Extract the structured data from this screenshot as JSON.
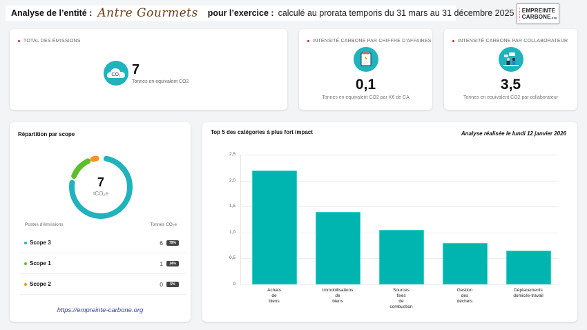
{
  "header": {
    "entity_label": "Analyse de l’entité :",
    "entity_name": "Antre Gourmets",
    "exercise_label": "pour l’exercice :",
    "exercise_value": "calculé au prorata temporis du 31 mars au 31 décembre 2025"
  },
  "logo": {
    "line1": "EMPREINTE",
    "line2": "CARBONE",
    "suffix": ".org"
  },
  "kpis": {
    "total": {
      "title": "TOTAL DES ÉMISSIONS",
      "icon": "co2-cloud-icon",
      "icon_text": "CO₂",
      "value": "7",
      "unit": "Tonnes en equivalent CO2"
    },
    "revenue": {
      "title": "INTENSITÉ CARBONE PAR CHIFFRE D’AFFAIRES",
      "icon": "clipboard-icon",
      "value": "0,1",
      "unit": "Tonnes en equivalent CO2 par K€ de CA"
    },
    "employee": {
      "title": "INTENSITÉ CARBONE PAR COLLABORATEUR",
      "icon": "collaborators-icon",
      "value": "3,5",
      "unit": "Tonnes en equivalent CO2 par collaborateur"
    }
  },
  "scope_panel": {
    "title": "Répartition par scope",
    "donut_value": "7",
    "donut_unit": "tCO₂e",
    "col_left": "Postes d’émissions",
    "col_right": "Tonnes CO₂e",
    "rows": [
      {
        "name": "Scope 3",
        "value": "6",
        "pct": "79%",
        "color": "#1fb3bd"
      },
      {
        "name": "Scope 1",
        "value": "1",
        "pct": "14%",
        "color": "#5cbf2a"
      },
      {
        "name": "Scope 2",
        "value": "0",
        "pct": "5%",
        "color": "#f7941d"
      }
    ],
    "link": "https://empreinte-carbone.org"
  },
  "top5_panel": {
    "title": "Top 5 des catégories à plus fort impact",
    "date": "Analyse réalisée le lundi 12 janvier 2026"
  },
  "colors": {
    "accent": "#1fb3bd",
    "bar": "#00b5b0",
    "scope1": "#5cbf2a",
    "scope2": "#f7941d",
    "scope3": "#1fb3bd",
    "kpi_dot": "#e02020",
    "link": "#2b45a8"
  },
  "chart_data": [
    {
      "type": "bar",
      "title": "Top 5 des catégories à plus fort impact",
      "categories": [
        "Achats de biens",
        "Immobilisations de biens",
        "Sources fixes de combustion",
        "Gestion des déchets",
        "Déplacements domicile-travail"
      ],
      "category_display": [
        "Achats\nde\nbiens",
        "Immobilisations\nde\nbiens",
        "Sources\nfixes\nde\ncombustion",
        "Gestion\ndes\ndéchets",
        "Déplacements\ndomicile-travail"
      ],
      "values": [
        2.2,
        1.4,
        1.05,
        0.8,
        0.65
      ],
      "xlabel": "",
      "ylabel": "",
      "ylim": [
        0,
        2.5
      ],
      "yticks": [
        "0",
        "0,5",
        "1,0",
        "1,5",
        "2,0",
        "2,5"
      ],
      "grid": true,
      "legend": "none"
    },
    {
      "type": "pie",
      "title": "Répartition par scope",
      "categories": [
        "Scope 3",
        "Scope 1",
        "Scope 2"
      ],
      "values": [
        6,
        1,
        0
      ],
      "percentages": [
        79,
        14,
        5
      ],
      "center_label": "7 tCO₂e"
    }
  ]
}
